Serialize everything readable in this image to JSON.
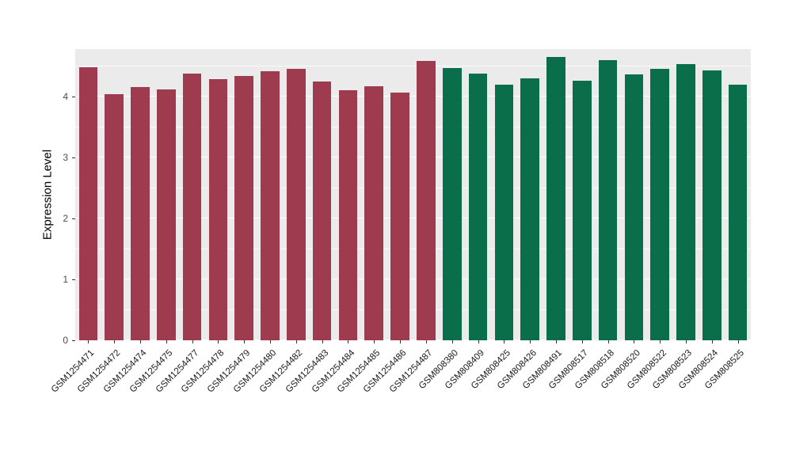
{
  "chart_data": {
    "type": "bar",
    "title": "",
    "xlabel": "",
    "ylabel": "Expression Level",
    "ylim": [
      0,
      4.78
    ],
    "yticks": [
      0,
      1,
      2,
      3,
      4
    ],
    "grid_minor": [
      0.5,
      1.5,
      2.5,
      3.5,
      4.5
    ],
    "panel_bg": "#EBEBEB",
    "grid_color": "#FFFFFF",
    "legend": "none",
    "group_colors": {
      "groupA": "#9E3B4E",
      "groupB": "#0B6E4B"
    },
    "bars": [
      {
        "label": "GSM1254471",
        "value": 4.48,
        "group": "groupA"
      },
      {
        "label": "GSM1254472",
        "value": 4.04,
        "group": "groupA"
      },
      {
        "label": "GSM1254474",
        "value": 4.16,
        "group": "groupA"
      },
      {
        "label": "GSM1254475",
        "value": 4.12,
        "group": "groupA"
      },
      {
        "label": "GSM1254477",
        "value": 4.38,
        "group": "groupA"
      },
      {
        "label": "GSM1254478",
        "value": 4.29,
        "group": "groupA"
      },
      {
        "label": "GSM1254479",
        "value": 4.34,
        "group": "groupA"
      },
      {
        "label": "GSM1254480",
        "value": 4.42,
        "group": "groupA"
      },
      {
        "label": "GSM1254482",
        "value": 4.46,
        "group": "groupA"
      },
      {
        "label": "GSM1254483",
        "value": 4.25,
        "group": "groupA"
      },
      {
        "label": "GSM1254484",
        "value": 4.1,
        "group": "groupA"
      },
      {
        "label": "GSM1254485",
        "value": 4.17,
        "group": "groupA"
      },
      {
        "label": "GSM1254486",
        "value": 4.06,
        "group": "groupA"
      },
      {
        "label": "GSM1254487",
        "value": 4.58,
        "group": "groupA"
      },
      {
        "label": "GSM808380",
        "value": 4.47,
        "group": "groupB"
      },
      {
        "label": "GSM808409",
        "value": 4.38,
        "group": "groupB"
      },
      {
        "label": "GSM808425",
        "value": 4.19,
        "group": "groupB"
      },
      {
        "label": "GSM808426",
        "value": 4.3,
        "group": "groupB"
      },
      {
        "label": "GSM808491",
        "value": 4.65,
        "group": "groupB"
      },
      {
        "label": "GSM808517",
        "value": 4.26,
        "group": "groupB"
      },
      {
        "label": "GSM808518",
        "value": 4.6,
        "group": "groupB"
      },
      {
        "label": "GSM808520",
        "value": 4.36,
        "group": "groupB"
      },
      {
        "label": "GSM808522",
        "value": 4.46,
        "group": "groupB"
      },
      {
        "label": "GSM808523",
        "value": 4.53,
        "group": "groupB"
      },
      {
        "label": "GSM808524",
        "value": 4.43,
        "group": "groupB"
      },
      {
        "label": "GSM808525",
        "value": 4.2,
        "group": "groupB"
      }
    ]
  }
}
